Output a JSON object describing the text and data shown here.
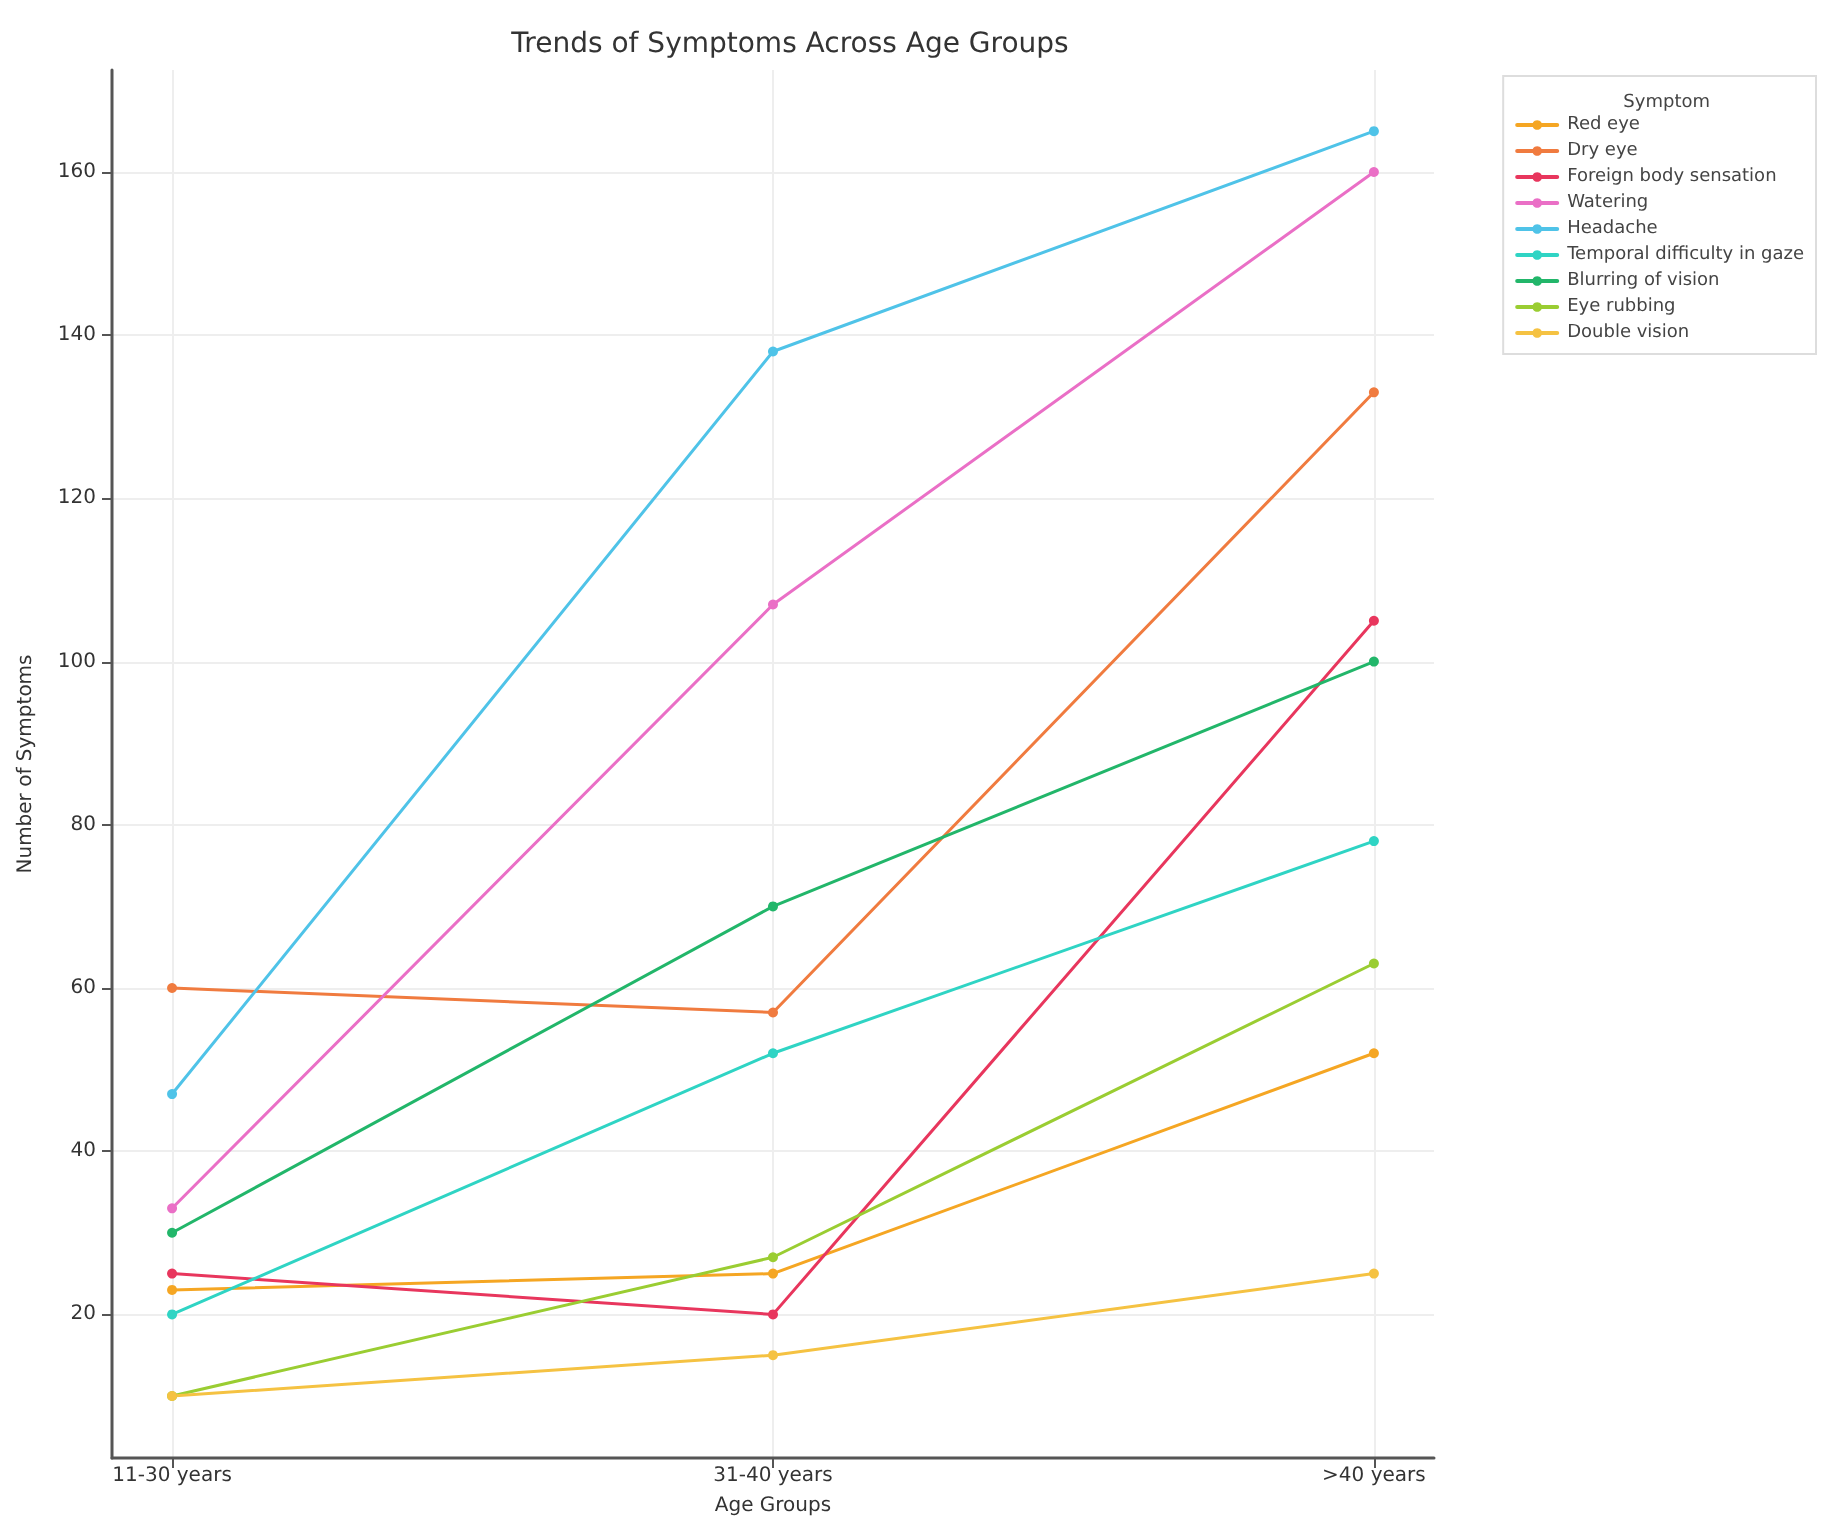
{
  "chart_data": {
    "type": "line",
    "title": "Trends of Symptoms Across Age Groups",
    "xlabel": "Age Groups",
    "ylabel": "Number of Symptoms",
    "legend_title": "Symptom",
    "categories": [
      "11-30 years",
      "31-40 years",
      ">40 years"
    ],
    "series": [
      {
        "name": "Red eye",
        "color": "#f5a623",
        "values": [
          23,
          25,
          52
        ]
      },
      {
        "name": "Dry eye",
        "color": "#f07b3f",
        "values": [
          60,
          57,
          133
        ]
      },
      {
        "name": "Foreign body sensation",
        "color": "#e8365d",
        "values": [
          25,
          20,
          105
        ]
      },
      {
        "name": "Watering",
        "color": "#ea6fc6",
        "values": [
          33,
          107,
          160
        ]
      },
      {
        "name": "Headache",
        "color": "#4fc3e8",
        "values": [
          47,
          138,
          165
        ]
      },
      {
        "name": "Temporal difficulty in gaze",
        "color": "#2fd4c4",
        "values": [
          20,
          52,
          78
        ]
      },
      {
        "name": "Blurring of vision",
        "color": "#22b66a",
        "values": [
          30,
          70,
          100
        ]
      },
      {
        "name": "Eye rubbing",
        "color": "#9acd32",
        "values": [
          10,
          27,
          63
        ]
      },
      {
        "name": "Double vision",
        "color": "#f5c242",
        "values": [
          10,
          15,
          25
        ]
      }
    ],
    "ylim": [
      2.4,
      172.5
    ],
    "yticks": [
      20,
      40,
      60,
      80,
      100,
      120,
      140,
      160
    ],
    "grid": true,
    "legend": "top right",
    "marker": "circle",
    "line_style": "solid"
  }
}
